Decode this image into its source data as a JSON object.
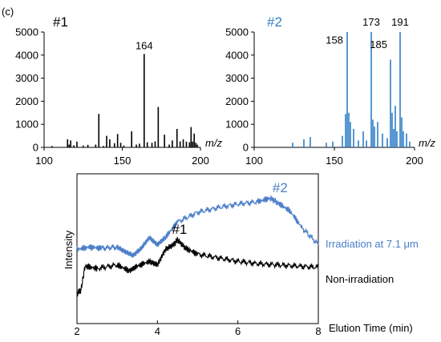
{
  "panel_label": "(c)",
  "colors": {
    "black": "#000000",
    "blue": "#2f7fc6",
    "trace_blue": "#4a7ec8",
    "axis": "#000000"
  },
  "chart_data": [
    {
      "type": "bar",
      "title": "#1",
      "xlabel": "m/z",
      "ylabel": "",
      "xlim": [
        100,
        200
      ],
      "ylim": [
        0,
        5000
      ],
      "xticks": [
        100,
        150,
        200
      ],
      "yticks": [
        0,
        1000,
        2000,
        3000,
        4000,
        5000
      ],
      "color": "#000000",
      "annotations": [
        {
          "text": "164",
          "x": 164
        }
      ],
      "x": [
        105,
        115,
        116,
        117,
        119,
        121,
        125,
        128,
        133,
        135,
        138,
        140,
        142,
        145,
        147,
        149,
        151,
        156,
        159,
        161,
        164,
        166,
        169,
        171,
        173,
        177,
        180,
        182,
        185,
        187,
        189,
        191,
        193,
        194,
        195,
        196,
        197,
        198
      ],
      "values": [
        60,
        350,
        120,
        300,
        90,
        250,
        80,
        110,
        120,
        1450,
        60,
        500,
        350,
        180,
        580,
        200,
        80,
        700,
        120,
        160,
        4050,
        220,
        200,
        260,
        1750,
        550,
        120,
        300,
        800,
        260,
        350,
        250,
        220,
        880,
        250,
        600,
        200,
        120
      ]
    },
    {
      "type": "bar",
      "title": "#2",
      "xlabel": "m/z",
      "ylabel": "",
      "xlim": [
        100,
        200
      ],
      "ylim": [
        0,
        5000
      ],
      "xticks": [
        100,
        150,
        200
      ],
      "yticks": [
        0,
        1000,
        2000,
        3000,
        4000,
        5000
      ],
      "color": "#2f7fc6",
      "annotations": [
        {
          "text": "158",
          "x": 158
        },
        {
          "text": "173",
          "x": 173
        },
        {
          "text": "185",
          "x": 185
        },
        {
          "text": "191",
          "x": 191
        }
      ],
      "x": [
        124,
        131,
        135,
        145,
        149,
        155,
        157,
        158,
        159,
        160,
        162,
        165,
        168,
        170,
        173,
        174,
        175,
        177,
        180,
        183,
        185,
        186,
        187,
        188,
        189,
        191,
        192,
        193,
        195,
        197
      ],
      "values": [
        200,
        350,
        450,
        200,
        250,
        500,
        1450,
        5000,
        1500,
        1100,
        800,
        300,
        700,
        300,
        5000,
        1200,
        900,
        1100,
        600,
        400,
        3800,
        1500,
        800,
        1800,
        700,
        5000,
        1300,
        700,
        600,
        250
      ]
    },
    {
      "type": "line",
      "title": "",
      "xlabel": "Elution Time (min)",
      "ylabel": "Intensity",
      "xlim": [
        2,
        8
      ],
      "ylim": [
        0,
        100
      ],
      "xticks": [
        2,
        4,
        6,
        8
      ],
      "grid": false,
      "series": [
        {
          "name": "Irradiation at 7.1 μm",
          "color": "#4a7ec8",
          "x": [
            2.0,
            2.3,
            2.6,
            3.0,
            3.2,
            3.4,
            3.6,
            3.8,
            4.0,
            4.2,
            4.5,
            5.0,
            5.5,
            6.0,
            6.5,
            6.8,
            7.0,
            7.3,
            7.6,
            8.0
          ],
          "values": [
            42,
            44,
            43,
            44,
            40,
            37,
            43,
            52,
            46,
            52,
            65,
            73,
            77,
            80,
            82,
            85,
            81,
            74,
            60,
            46
          ]
        },
        {
          "name": "Non-irradiation",
          "color": "#000000",
          "x": [
            2.0,
            2.1,
            2.2,
            2.5,
            3.0,
            3.3,
            3.5,
            3.8,
            4.0,
            4.2,
            4.4,
            4.5,
            4.7,
            5.0,
            5.5,
            6.0,
            6.5,
            7.0,
            7.5,
            8.0
          ],
          "values": [
            5,
            8,
            28,
            26,
            29,
            24,
            28,
            32,
            29,
            42,
            46,
            50,
            43,
            38,
            35,
            32,
            30,
            29,
            28,
            27
          ]
        }
      ],
      "annotations": [
        {
          "text": "#2",
          "x": 7.05,
          "y": 90,
          "color": "#4a7ec8"
        },
        {
          "text": "#1",
          "x": 4.55,
          "y": 55,
          "color": "#000000"
        }
      ]
    }
  ]
}
